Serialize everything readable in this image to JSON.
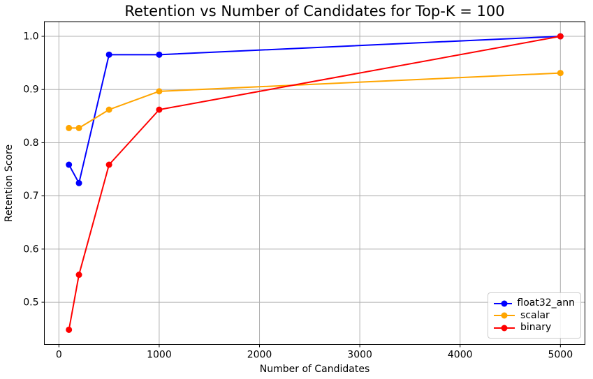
{
  "figure": {
    "title": "Retention vs Number of Candidates for Top-K = 100",
    "xlabel": "Number of Candidates",
    "ylabel": "Retention Score"
  },
  "chart_data": {
    "type": "line",
    "title": "Retention vs Number of Candidates for Top-K = 100",
    "xlabel": "Number of Candidates",
    "ylabel": "Retention Score",
    "x": [
      100,
      200,
      500,
      1000,
      5000
    ],
    "series": [
      {
        "name": "float32_ann",
        "color": "#0000ff",
        "values": [
          0.7586,
          0.7241,
          0.9655,
          0.9655,
          1.0
        ]
      },
      {
        "name": "scalar",
        "color": "#ffa500",
        "values": [
          0.8276,
          0.8276,
          0.8621,
          0.8966,
          0.931
        ]
      },
      {
        "name": "binary",
        "color": "#ff0000",
        "values": [
          0.4483,
          0.5517,
          0.7586,
          0.8621,
          1.0
        ]
      }
    ],
    "xlim": [
      -145,
      5245
    ],
    "ylim": [
      0.4207,
      1.0276
    ],
    "xticks": [
      0,
      1000,
      2000,
      3000,
      4000,
      5000
    ],
    "xtick_labels": [
      "0",
      "1000",
      "2000",
      "3000",
      "4000",
      "5000"
    ],
    "yticks": [
      0.5,
      0.6,
      0.7,
      0.8,
      0.9,
      1.0
    ],
    "ytick_labels": [
      "0.5",
      "0.6",
      "0.7",
      "0.8",
      "0.9",
      "1.0"
    ],
    "grid": true,
    "marker": "o",
    "line_width": 2,
    "marker_radius": 4.5,
    "legend_position": "lower right",
    "legend_labels": [
      "float32_ann",
      "scalar",
      "binary"
    ]
  },
  "colors": {
    "grid": "#b0b0b0",
    "frame": "#000000",
    "text": "#000000",
    "legend_border": "#cccccc",
    "background": "#ffffff"
  }
}
